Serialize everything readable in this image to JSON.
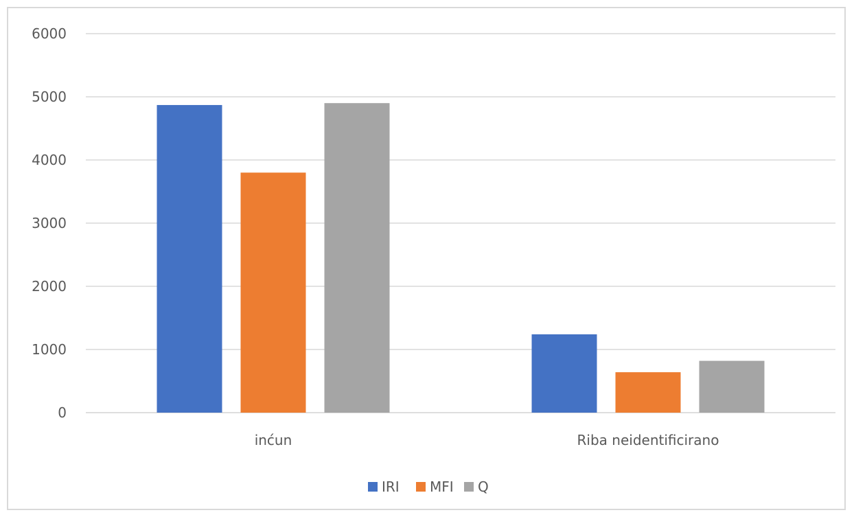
{
  "chart_data": {
    "type": "bar",
    "categories": [
      "inćun",
      "Riba neidentificirano"
    ],
    "series": [
      {
        "name": "IRI",
        "values": [
          4870,
          1240
        ],
        "color": "#4472C4"
      },
      {
        "name": "MFI",
        "values": [
          3800,
          640
        ],
        "color": "#ED7D31"
      },
      {
        "name": "Q",
        "values": [
          4900,
          820
        ],
        "color": "#A5A5A5"
      }
    ],
    "yticks": [
      "0",
      "1000",
      "2000",
      "3000",
      "4000",
      "5000",
      "6000"
    ],
    "ylim": [
      0,
      6000
    ],
    "grid": true,
    "legend": "bottom"
  }
}
